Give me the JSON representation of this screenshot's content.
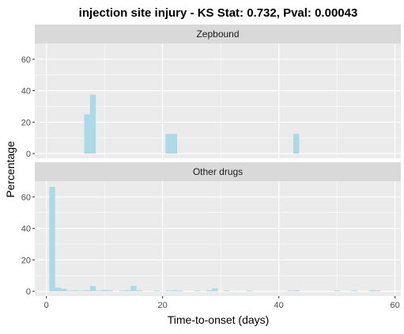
{
  "chart_data": {
    "type": "bar",
    "title": "injection site injury - KS Stat: 0.732, Pval: 0.00043",
    "xlabel": "Time-to-onset (days)",
    "ylabel": "Percentage",
    "xlim": [
      -2,
      61
    ],
    "ylim": [
      -3,
      70
    ],
    "x_ticks": [
      0,
      20,
      40,
      60
    ],
    "y_ticks": [
      0,
      20,
      40,
      60
    ],
    "bar_color": "#add8e6",
    "panel_bg": "#ebebeb",
    "strip_bg": "#d9d9d9",
    "grid": true,
    "bin_width": 1,
    "panels": [
      {
        "label": "Zepbound",
        "bars": [
          {
            "x": 7,
            "value": 25
          },
          {
            "x": 8,
            "value": 37.5
          },
          {
            "x": 21,
            "value": 12.5
          },
          {
            "x": 22,
            "value": 12.5
          },
          {
            "x": 43,
            "value": 12.5
          }
        ]
      },
      {
        "label": "Other drugs",
        "bars": [
          {
            "x": 1,
            "value": 66.5
          },
          {
            "x": 2,
            "value": 2.3
          },
          {
            "x": 3,
            "value": 1.6
          },
          {
            "x": 4,
            "value": 0.4
          },
          {
            "x": 5,
            "value": 0.6
          },
          {
            "x": 6,
            "value": 0.4
          },
          {
            "x": 7,
            "value": 0.6
          },
          {
            "x": 8,
            "value": 3.4
          },
          {
            "x": 9,
            "value": 0.4
          },
          {
            "x": 10,
            "value": 0.8
          },
          {
            "x": 11,
            "value": 0.6
          },
          {
            "x": 13,
            "value": 0.4
          },
          {
            "x": 14,
            "value": 0.6
          },
          {
            "x": 15,
            "value": 3.4
          },
          {
            "x": 16,
            "value": 0.6
          },
          {
            "x": 19,
            "value": 0.4
          },
          {
            "x": 21,
            "value": 0.4
          },
          {
            "x": 22,
            "value": 0.6
          },
          {
            "x": 23,
            "value": 0.4
          },
          {
            "x": 26,
            "value": 0.4
          },
          {
            "x": 28,
            "value": 0.6
          },
          {
            "x": 29,
            "value": 1.8
          },
          {
            "x": 31,
            "value": 0.4
          },
          {
            "x": 35,
            "value": 0.4
          },
          {
            "x": 42,
            "value": 0.4
          },
          {
            "x": 43,
            "value": 0.6
          },
          {
            "x": 50,
            "value": 0.4
          },
          {
            "x": 53,
            "value": 0.4
          },
          {
            "x": 56,
            "value": 0.6
          },
          {
            "x": 57,
            "value": 0.4
          }
        ]
      }
    ]
  }
}
